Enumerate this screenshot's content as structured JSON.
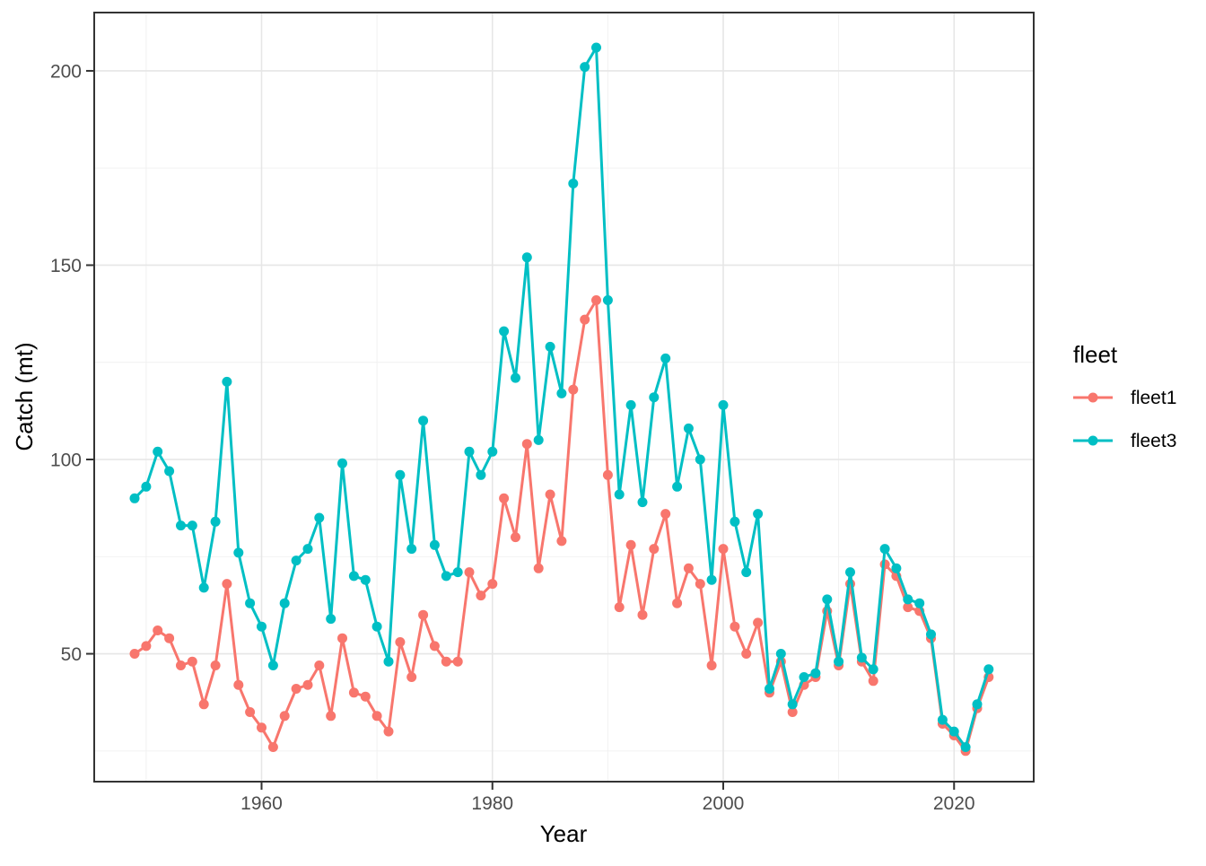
{
  "figure": {
    "background": "#FFFFFF",
    "panel_background": "#FFFFFF",
    "panel_border_color": "#333333",
    "major_grid_color": "#E6E6E6",
    "minor_grid_color": "#F0F0F0",
    "tick_mark_color": "#333333",
    "tick_label_color": "#4D4D4D",
    "axis_title_color": "#000000"
  },
  "chart_data": {
    "type": "line",
    "title": "",
    "xlabel": "Year",
    "ylabel": "Catch (mt)",
    "grid": "on",
    "x_ticks": [
      1960,
      1980,
      2000,
      2020
    ],
    "x_minor_ticks": [
      1950,
      1970,
      1990,
      2010
    ],
    "y_ticks": [
      50,
      100,
      150,
      200
    ],
    "y_minor_ticks": [
      25,
      75,
      125,
      175
    ],
    "x_range": [
      1945.5,
      2026.9
    ],
    "y_range": [
      17.1,
      215.0
    ],
    "legend": {
      "title": "fleet",
      "position": "right",
      "entries": [
        "fleet1",
        "fleet3"
      ]
    },
    "x": [
      1949,
      1950,
      1951,
      1952,
      1953,
      1954,
      1955,
      1956,
      1957,
      1958,
      1959,
      1960,
      1961,
      1962,
      1963,
      1964,
      1965,
      1966,
      1967,
      1968,
      1969,
      1970,
      1971,
      1972,
      1973,
      1974,
      1975,
      1976,
      1977,
      1978,
      1979,
      1980,
      1981,
      1982,
      1983,
      1984,
      1985,
      1986,
      1987,
      1988,
      1989,
      1990,
      1991,
      1992,
      1993,
      1994,
      1995,
      1996,
      1997,
      1998,
      1999,
      2000,
      2001,
      2002,
      2003,
      2004,
      2005,
      2006,
      2007,
      2008,
      2009,
      2010,
      2011,
      2012,
      2013,
      2014,
      2015,
      2016,
      2017,
      2018,
      2019,
      2020,
      2021,
      2022,
      2023
    ],
    "series": [
      {
        "name": "fleet1",
        "color": "#F8766D",
        "values": [
          50,
          52,
          56,
          54,
          47,
          48,
          37,
          47,
          68,
          42,
          35,
          31,
          26,
          34,
          41,
          42,
          47,
          34,
          54,
          40,
          39,
          34,
          30,
          53,
          44,
          60,
          52,
          48,
          48,
          71,
          65,
          68,
          90,
          80,
          104,
          72,
          91,
          79,
          118,
          136,
          141,
          96,
          62,
          78,
          60,
          77,
          86,
          63,
          72,
          68,
          47,
          77,
          57,
          50,
          58,
          40,
          48,
          35,
          42,
          44,
          61,
          47,
          68,
          48,
          43,
          73,
          70,
          62,
          61,
          54,
          32,
          29,
          25,
          36,
          44
        ]
      },
      {
        "name": "fleet3",
        "color": "#00BFC4",
        "values": [
          90,
          93,
          102,
          97,
          83,
          83,
          67,
          84,
          120,
          76,
          63,
          57,
          47,
          63,
          74,
          77,
          85,
          59,
          99,
          70,
          69,
          57,
          48,
          96,
          77,
          110,
          78,
          70,
          71,
          102,
          96,
          102,
          133,
          121,
          152,
          105,
          129,
          117,
          171,
          201,
          206,
          141,
          91,
          114,
          89,
          116,
          126,
          93,
          108,
          100,
          69,
          114,
          84,
          71,
          86,
          41,
          50,
          37,
          44,
          45,
          64,
          48,
          71,
          49,
          46,
          77,
          72,
          64,
          63,
          55,
          33,
          30,
          26,
          37,
          46
        ]
      }
    ]
  }
}
